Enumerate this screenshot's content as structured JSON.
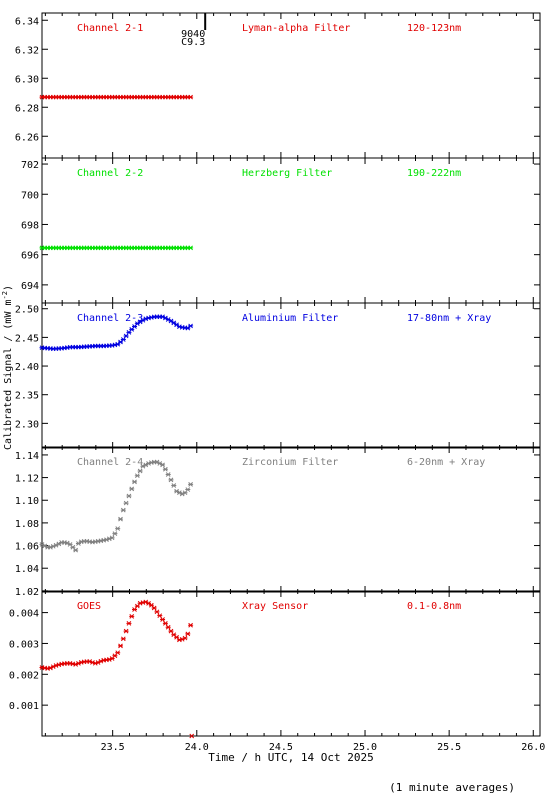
{
  "figure": {
    "ylabel_main": "Calibrated Signal / (mW m",
    "ylabel_sup": "-2",
    "ylabel_close": ")",
    "xlabel": "Time / h UTC, 14 Oct 2025",
    "footnote": "(1 minute averages)",
    "marker_text_1": "9040",
    "marker_text_2": "C9.3"
  },
  "chart_data": [
    {
      "type": "scatter",
      "name": "Channel 2-1",
      "filter": "Lyman-alpha Filter",
      "band": "120-123nm",
      "color": "#e00000",
      "xlim": [
        23.08,
        26.04
      ],
      "ylim": [
        6.245,
        6.345
      ],
      "xticks": [
        23.5,
        24.0,
        24.5,
        25.0,
        25.5,
        26.0
      ],
      "yticks": [
        6.26,
        6.28,
        6.3,
        6.32,
        6.34
      ],
      "ytick_labels": [
        "6.26",
        "6.28",
        "6.30",
        "6.32",
        "6.34"
      ],
      "series": [
        {
          "x": [
            23.08,
            23.2,
            23.3,
            23.4,
            23.5,
            23.6,
            23.7,
            23.8,
            23.9,
            23.97
          ],
          "y": [
            6.287,
            6.287,
            6.287,
            6.287,
            6.287,
            6.287,
            6.287,
            6.287,
            6.287,
            6.287
          ]
        }
      ]
    },
    {
      "type": "scatter",
      "name": "Channel 2-2",
      "filter": "Herzberg Filter",
      "band": "190-222nm",
      "color": "#00e000",
      "xlim": [
        23.08,
        26.04
      ],
      "ylim": [
        692.8,
        702.4
      ],
      "xticks": [
        23.5,
        24.0,
        24.5,
        25.0,
        25.5,
        26.0
      ],
      "yticks": [
        694,
        696,
        698,
        700,
        702
      ],
      "ytick_labels": [
        "694",
        "696",
        "698",
        "700",
        "702"
      ],
      "series": [
        {
          "x": [
            23.08,
            23.2,
            23.3,
            23.4,
            23.5,
            23.6,
            23.7,
            23.8,
            23.9,
            23.97
          ],
          "y": [
            696.45,
            696.45,
            696.45,
            696.45,
            696.45,
            696.45,
            696.45,
            696.45,
            696.45,
            696.45
          ]
        }
      ]
    },
    {
      "type": "scatter",
      "name": "Channel 2-3",
      "filter": "Aluminium Filter",
      "band": "17-80nm + Xray",
      "color": "#0000e0",
      "xlim": [
        23.08,
        26.04
      ],
      "ylim": [
        2.257,
        2.51
      ],
      "xticks": [
        23.5,
        24.0,
        24.5,
        25.0,
        25.5,
        26.0
      ],
      "yticks": [
        2.3,
        2.35,
        2.4,
        2.45,
        2.5
      ],
      "ytick_labels": [
        "2.30",
        "2.35",
        "2.40",
        "2.45",
        "2.50"
      ],
      "series": [
        {
          "x": [
            23.08,
            23.15,
            23.2,
            23.25,
            23.3,
            23.35,
            23.4,
            23.45,
            23.5,
            23.53,
            23.56,
            23.6,
            23.65,
            23.7,
            23.75,
            23.8,
            23.85,
            23.9,
            23.95,
            23.97
          ],
          "y": [
            2.432,
            2.43,
            2.431,
            2.433,
            2.433,
            2.434,
            2.435,
            2.435,
            2.436,
            2.438,
            2.445,
            2.46,
            2.475,
            2.483,
            2.486,
            2.486,
            2.478,
            2.468,
            2.466,
            2.472
          ]
        }
      ]
    },
    {
      "type": "scatter",
      "name": "Channel 2-4",
      "filter": "Zirconium Filter",
      "band": "6-20nm + Xray",
      "color": "#808080",
      "xlim": [
        23.08,
        26.04
      ],
      "ylim": [
        1.019,
        1.147
      ],
      "xticks": [
        23.5,
        24.0,
        24.5,
        25.0,
        25.5,
        26.0
      ],
      "yticks": [
        1.02,
        1.04,
        1.06,
        1.08,
        1.1,
        1.12,
        1.14
      ],
      "ytick_labels": [
        "1.02",
        "1.04",
        "1.06",
        "1.08",
        "1.10",
        "1.12",
        "1.14"
      ],
      "series": [
        {
          "x": [
            23.08,
            23.12,
            23.16,
            23.2,
            23.24,
            23.28,
            23.3,
            23.34,
            23.38,
            23.42,
            23.46,
            23.5,
            23.53,
            23.56,
            23.6,
            23.64,
            23.68,
            23.72,
            23.76,
            23.8,
            23.84,
            23.88,
            23.92,
            23.95,
            23.97
          ],
          "y": [
            1.061,
            1.058,
            1.06,
            1.063,
            1.062,
            1.056,
            1.063,
            1.064,
            1.063,
            1.064,
            1.065,
            1.067,
            1.075,
            1.09,
            1.105,
            1.12,
            1.13,
            1.133,
            1.134,
            1.131,
            1.12,
            1.108,
            1.105,
            1.11,
            1.116
          ]
        }
      ]
    },
    {
      "type": "scatter",
      "name": "GOES",
      "filter": "Xray Sensor",
      "band": "0.1-0.8nm",
      "color": "#e00000",
      "xlim": [
        23.08,
        26.04
      ],
      "ylim": [
        0.0,
        0.0047
      ],
      "xticks": [
        23.5,
        24.0,
        24.5,
        25.0,
        25.5,
        26.0
      ],
      "yticks": [
        0.001,
        0.002,
        0.003,
        0.004
      ],
      "ytick_labels": [
        "0.001",
        "0.002",
        "0.003",
        "0.004"
      ],
      "xtick_labels": [
        "23.5",
        "24.0",
        "24.5",
        "25.0",
        "25.5",
        "26.0"
      ],
      "series": [
        {
          "x": [
            23.08,
            23.12,
            23.16,
            23.2,
            23.24,
            23.28,
            23.32,
            23.36,
            23.4,
            23.44,
            23.48,
            23.5,
            23.53,
            23.56,
            23.6,
            23.63,
            23.66,
            23.7,
            23.74,
            23.78,
            23.82,
            23.86,
            23.9,
            23.94,
            23.97
          ],
          "y": [
            0.00222,
            0.00218,
            0.00228,
            0.00234,
            0.00236,
            0.00232,
            0.0024,
            0.00242,
            0.00235,
            0.00245,
            0.00248,
            0.00252,
            0.0027,
            0.0031,
            0.0037,
            0.0041,
            0.0043,
            0.00435,
            0.0042,
            0.0039,
            0.0036,
            0.0033,
            0.0031,
            0.0032,
            0.0037
          ]
        }
      ]
    }
  ]
}
